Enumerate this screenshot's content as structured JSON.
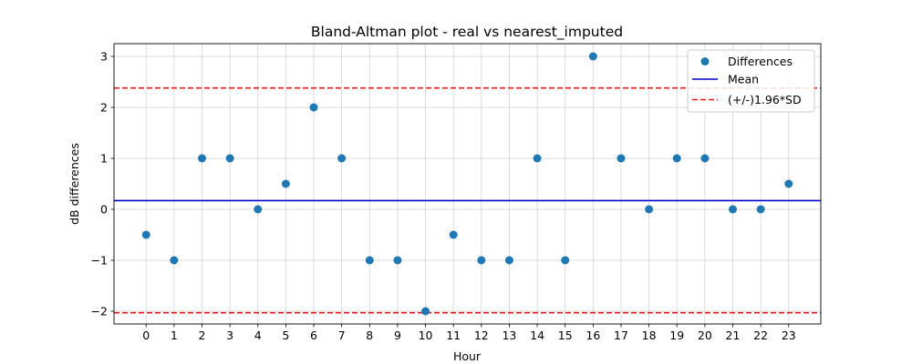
{
  "chart_data": {
    "type": "scatter",
    "title": "Bland-Altman plot - real vs nearest_imputed",
    "xlabel": "Hour",
    "ylabel": "dB differences",
    "xlim": [
      -1.15,
      24.15
    ],
    "ylim": [
      -2.25,
      3.25
    ],
    "x_ticks": [
      0,
      1,
      2,
      3,
      4,
      5,
      6,
      7,
      8,
      9,
      10,
      11,
      12,
      13,
      14,
      15,
      16,
      17,
      18,
      19,
      20,
      21,
      22,
      23
    ],
    "y_ticks": [
      -2,
      -1,
      0,
      1,
      2,
      3
    ],
    "y_tick_labels": [
      "−2",
      "−1",
      "0",
      "1",
      "2",
      "3"
    ],
    "grid": true,
    "legend_position": "upper-right",
    "series": [
      {
        "name": "Differences",
        "kind": "scatter",
        "color": "#1f77b4",
        "x": [
          0,
          1,
          2,
          3,
          4,
          5,
          6,
          7,
          8,
          9,
          10,
          11,
          12,
          13,
          14,
          15,
          16,
          17,
          18,
          19,
          20,
          21,
          22,
          23
        ],
        "y": [
          -0.5,
          -1,
          1,
          1,
          0,
          0.5,
          2,
          1,
          -1,
          -1,
          -2,
          -0.5,
          -1,
          -1,
          1,
          -1,
          3,
          1,
          0,
          1,
          1,
          0,
          0,
          0.5
        ]
      },
      {
        "name": "Mean",
        "kind": "hline",
        "color": "#0000cc",
        "style": "solid",
        "y": 0.17
      },
      {
        "name": "(+/-)1.96*SD",
        "kind": "hline",
        "color": "#e31a1c",
        "style": "dashed",
        "y": [
          2.38,
          -2.03
        ]
      }
    ]
  }
}
